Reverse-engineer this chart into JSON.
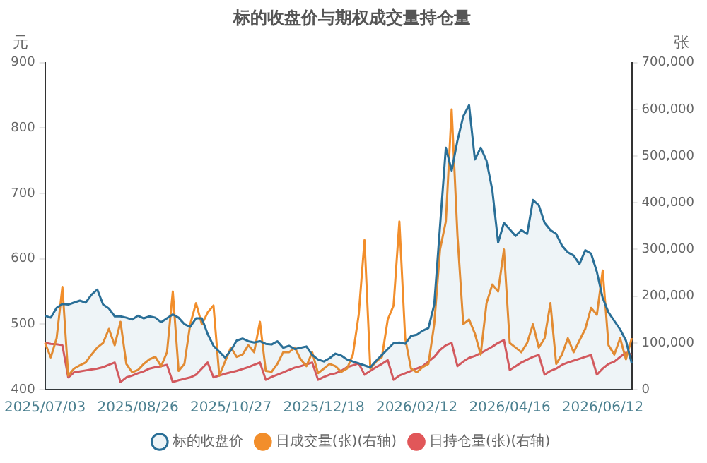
{
  "chart_data": {
    "type": "line",
    "title": "标的收盘价与期权成交量持仓量",
    "ylabel": "元",
    "y2label": "张",
    "categories": [
      "2025/07/03",
      null,
      null,
      null,
      null,
      null,
      null,
      null,
      null,
      null,
      null,
      null,
      null,
      null,
      null,
      null,
      "2025/08/26",
      null,
      null,
      null,
      null,
      null,
      null,
      null,
      null,
      null,
      null,
      null,
      null,
      null,
      null,
      null,
      "2025/10/27",
      null,
      null,
      null,
      null,
      null,
      null,
      null,
      null,
      null,
      null,
      null,
      null,
      null,
      null,
      null,
      "2025/12/18",
      null,
      null,
      null,
      null,
      null,
      null,
      null,
      null,
      null,
      null,
      null,
      null,
      null,
      null,
      null,
      "2026/02/12",
      null,
      null,
      null,
      null,
      null,
      null,
      null,
      null,
      null,
      null,
      null,
      null,
      null,
      null,
      null,
      "2026/04/16",
      null,
      null,
      null,
      null,
      null,
      null,
      null,
      null,
      null,
      null,
      null,
      null,
      null,
      null,
      null,
      "2026/06/12",
      null,
      null,
      null,
      null,
      null
    ],
    "series": [
      {
        "name": "标的收盘价",
        "type": "area",
        "color": "#2a6f97",
        "values": [
          513,
          510,
          525,
          531,
          530,
          533,
          536,
          533,
          545,
          553,
          530,
          524,
          512,
          512,
          510,
          507,
          513,
          509,
          512,
          510,
          503,
          509,
          515,
          510,
          500,
          496,
          509,
          509,
          485,
          467,
          458,
          449,
          460,
          475,
          478,
          474,
          472,
          474,
          470,
          469,
          474,
          464,
          467,
          462,
          464,
          466,
          453,
          446,
          443,
          448,
          455,
          452,
          446,
          443,
          440,
          437,
          434,
          444,
          453,
          462,
          471,
          472,
          470,
          482,
          484,
          490,
          494,
          530,
          650,
          770,
          735,
          781,
          818,
          835,
          752,
          770,
          750,
          705,
          625,
          655,
          645,
          635,
          644,
          638,
          690,
          682,
          655,
          644,
          638,
          620,
          610,
          605,
          592,
          613,
          608,
          580,
          540,
          518,
          505,
          492,
          475,
          440
        ]
      },
      {
        "name": "日成交量(张)(右轴)",
        "axis": "y2",
        "color": "#f28e2b",
        "values": [
          100000,
          69000,
          110000,
          220000,
          30000,
          45000,
          52000,
          58000,
          75000,
          90000,
          100000,
          130000,
          95000,
          145000,
          55000,
          37000,
          42000,
          55000,
          65000,
          70000,
          50000,
          80000,
          210000,
          40000,
          55000,
          140000,
          185000,
          140000,
          165000,
          180000,
          30000,
          60000,
          90000,
          70000,
          75000,
          95000,
          80000,
          145000,
          40000,
          38000,
          55000,
          80000,
          80000,
          90000,
          65000,
          50000,
          80000,
          35000,
          45000,
          55000,
          50000,
          38000,
          45000,
          75000,
          160000,
          320000,
          45000,
          60000,
          70000,
          150000,
          180000,
          360000,
          110000,
          45000,
          37000,
          48000,
          55000,
          140000,
          300000,
          360000,
          600000,
          330000,
          140000,
          150000,
          120000,
          75000,
          185000,
          225000,
          210000,
          300000,
          100000,
          90000,
          80000,
          100000,
          140000,
          90000,
          110000,
          185000,
          55000,
          75000,
          110000,
          80000,
          105000,
          130000,
          175000,
          160000,
          255000,
          95000,
          75000,
          110000,
          65000,
          110000
        ]
      },
      {
        "name": "日持仓量(张)(右轴)",
        "axis": "y2",
        "color": "#e15759",
        "values": [
          100000,
          98000,
          97000,
          95000,
          26000,
          37000,
          39000,
          41000,
          43000,
          45000,
          48000,
          53000,
          58000,
          16000,
          26000,
          30000,
          35000,
          39000,
          45000,
          48000,
          50000,
          53000,
          16000,
          20000,
          23000,
          26000,
          32000,
          45000,
          58000,
          26000,
          30000,
          34000,
          37000,
          40000,
          44000,
          48000,
          53000,
          58000,
          21000,
          27000,
          32000,
          37000,
          42000,
          47000,
          50000,
          54000,
          58000,
          21000,
          27000,
          32000,
          35000,
          40000,
          48000,
          52000,
          56000,
          32000,
          40000,
          48000,
          55000,
          63000,
          21000,
          30000,
          35000,
          40000,
          45000,
          50000,
          60000,
          70000,
          85000,
          95000,
          100000,
          50000,
          60000,
          68000,
          72000,
          78000,
          85000,
          92000,
          100000,
          106000,
          42000,
          50000,
          58000,
          64000,
          70000,
          74000,
          32000,
          40000,
          45000,
          53000,
          58000,
          62000,
          66000,
          70000,
          74000,
          32000,
          45000,
          55000,
          60000,
          70000,
          79000,
          75000
        ]
      }
    ],
    "ylim": [
      400,
      900
    ],
    "yticks": [
      400,
      500,
      600,
      700,
      800,
      900
    ],
    "y2lim": [
      0,
      700000
    ],
    "y2ticks": [
      0,
      {
        "value": 100000,
        "label": "100,000"
      },
      {
        "value": 200000,
        "label": "200,000"
      },
      {
        "value": 300000,
        "label": "300,000"
      },
      {
        "value": 400000,
        "label": "400,000"
      },
      {
        "value": 500000,
        "label": "500,000"
      },
      {
        "value": 600000,
        "label": "600,000"
      },
      {
        "value": 700000,
        "label": "700,000"
      }
    ],
    "grid": false,
    "legend": "bottom",
    "marker": "none",
    "line_style": "solid"
  }
}
